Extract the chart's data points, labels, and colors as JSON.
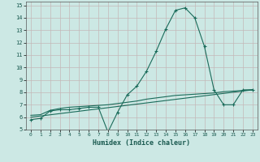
{
  "xlabel": "Humidex (Indice chaleur)",
  "background_color": "#cce8e4",
  "grid_color": "#c4b8b8",
  "line_color": "#1a6b5a",
  "xlim": [
    -0.5,
    23.5
  ],
  "ylim": [
    5,
    15.3
  ],
  "xticks": [
    0,
    1,
    2,
    3,
    4,
    5,
    6,
    7,
    8,
    9,
    10,
    11,
    12,
    13,
    14,
    15,
    16,
    17,
    18,
    19,
    20,
    21,
    22,
    23
  ],
  "yticks": [
    5,
    6,
    7,
    8,
    9,
    10,
    11,
    12,
    13,
    14,
    15
  ],
  "series1_x": [
    0,
    1,
    2,
    3,
    4,
    5,
    6,
    7,
    8,
    9,
    10,
    11,
    12,
    13,
    14,
    15,
    16,
    17,
    18,
    19,
    20,
    21,
    22,
    23
  ],
  "series1_y": [
    5.8,
    5.9,
    6.5,
    6.6,
    6.6,
    6.7,
    6.8,
    6.8,
    4.8,
    6.4,
    7.8,
    8.5,
    9.7,
    11.3,
    13.1,
    14.6,
    14.8,
    14.0,
    11.7,
    8.2,
    7.0,
    7.0,
    8.2,
    8.2
  ],
  "series2_x": [
    0,
    1,
    2,
    3,
    4,
    5,
    6,
    7,
    8,
    9,
    10,
    11,
    12,
    13,
    14,
    15,
    16,
    17,
    18,
    19,
    20,
    21,
    22,
    23
  ],
  "series2_y": [
    6.15,
    6.2,
    6.55,
    6.7,
    6.8,
    6.85,
    6.9,
    6.95,
    7.0,
    7.1,
    7.2,
    7.3,
    7.45,
    7.55,
    7.65,
    7.75,
    7.8,
    7.85,
    7.9,
    7.95,
    8.05,
    8.1,
    8.15,
    8.2
  ],
  "series3_x": [
    0,
    23
  ],
  "series3_y": [
    6.0,
    8.2
  ]
}
